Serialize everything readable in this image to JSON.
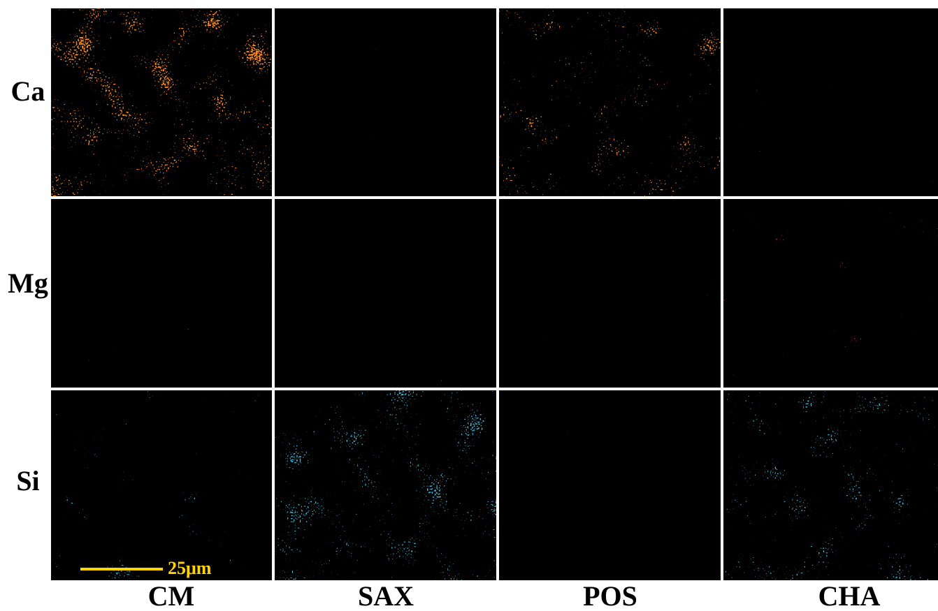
{
  "row_labels": [
    "Ca",
    "Mg",
    "Si"
  ],
  "column_labels": [
    "CM",
    "SAX",
    "POS",
    "CHA"
  ],
  "scale_bar": "25μm"
}
